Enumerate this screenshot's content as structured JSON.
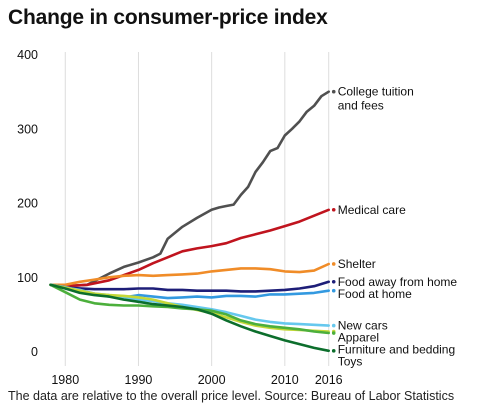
{
  "chart_data": {
    "type": "line",
    "title": "Change in consumer-price index",
    "note": "The data are relative to the overall price level. Source: Bureau of Labor Statistics",
    "xlabel": "",
    "ylabel": "",
    "xlim": [
      1976,
      2020
    ],
    "ylim": [
      0,
      400
    ],
    "x_ticks": [
      1980,
      1990,
      2000,
      2010,
      2016
    ],
    "y_ticks": [
      0,
      100,
      200,
      300,
      400
    ],
    "grid": "vertical lines at x ticks",
    "series": [
      {
        "name": "College tuition and fees",
        "label_lines": [
          "College tuition",
          "and fees"
        ],
        "color": "#505050",
        "x": [
          1978,
          1980,
          1983,
          1986,
          1988,
          1990,
          1992,
          1993,
          1994,
          1996,
          1998,
          2000,
          2001,
          2002,
          2003,
          2004,
          2005,
          2006,
          2007,
          2008,
          2009,
          2010,
          2011,
          2012,
          2013,
          2014,
          2015,
          2016
        ],
        "y": [
          100,
          98,
          100,
          115,
          124,
          130,
          137,
          142,
          162,
          178,
          190,
          201,
          204,
          206,
          208,
          221,
          232,
          252,
          265,
          280,
          284,
          301,
          310,
          320,
          333,
          341,
          354,
          360
        ]
      },
      {
        "name": "Medical care",
        "color": "#c0141e",
        "x": [
          1978,
          1980,
          1983,
          1986,
          1988,
          1990,
          1992,
          1994,
          1996,
          1998,
          2000,
          2002,
          2004,
          2006,
          2008,
          2010,
          2012,
          2014,
          2016
        ],
        "y": [
          100,
          98,
          100,
          106,
          113,
          120,
          129,
          137,
          145,
          149,
          152,
          156,
          163,
          168,
          173,
          179,
          185,
          193,
          201
        ]
      },
      {
        "name": "Shelter",
        "color": "#f08c28",
        "x": [
          1978,
          1980,
          1982,
          1984,
          1986,
          1988,
          1990,
          1992,
          1994,
          1996,
          1998,
          2000,
          2002,
          2004,
          2006,
          2008,
          2010,
          2012,
          2014,
          2016
        ],
        "y": [
          100,
          100,
          104,
          107,
          110,
          112,
          113,
          112,
          113,
          114,
          115,
          118,
          120,
          122,
          122,
          121,
          118,
          117,
          119,
          128
        ]
      },
      {
        "name": "Food away from home",
        "color": "#1e1e78",
        "x": [
          1978,
          1980,
          1984,
          1988,
          1990,
          1992,
          1994,
          1996,
          1998,
          2000,
          2002,
          2004,
          2006,
          2008,
          2010,
          2012,
          2014,
          2016
        ],
        "y": [
          100,
          96,
          94,
          94,
          95,
          95,
          93,
          93,
          92,
          92,
          92,
          91,
          91,
          92,
          93,
          95,
          98,
          104
        ]
      },
      {
        "name": "Food at home",
        "color": "#3399e0",
        "x": [
          1978,
          1980,
          1982,
          1984,
          1986,
          1988,
          1990,
          1992,
          1994,
          1996,
          1998,
          2000,
          2002,
          2004,
          2006,
          2008,
          2010,
          2012,
          2014,
          2016
        ],
        "y": [
          100,
          97,
          92,
          88,
          84,
          83,
          86,
          84,
          82,
          83,
          84,
          83,
          85,
          85,
          84,
          87,
          87,
          88,
          89,
          92
        ]
      },
      {
        "name": "New cars",
        "color": "#66c8ee",
        "x": [
          1978,
          1980,
          1982,
          1984,
          1986,
          1988,
          1990,
          1992,
          1994,
          1996,
          1998,
          2000,
          2002,
          2004,
          2006,
          2008,
          2010,
          2012,
          2014,
          2016
        ],
        "y": [
          100,
          96,
          93,
          88,
          86,
          82,
          80,
          78,
          75,
          73,
          70,
          67,
          63,
          58,
          53,
          50,
          48,
          47,
          46,
          45
        ]
      },
      {
        "name": "Apparel",
        "color": "#c4d838",
        "x": [
          1978,
          1980,
          1982,
          1984,
          1986,
          1988,
          1990,
          1992,
          1994,
          1996,
          1998,
          2000,
          2002,
          2004,
          2006,
          2008,
          2010,
          2012,
          2014,
          2016
        ],
        "y": [
          100,
          96,
          92,
          88,
          86,
          85,
          83,
          80,
          75,
          70,
          66,
          62,
          56,
          50,
          45,
          42,
          40,
          39,
          38,
          37
        ]
      },
      {
        "name": "Furniture and bedding",
        "color": "#4caf3c",
        "x": [
          1978,
          1980,
          1982,
          1984,
          1986,
          1988,
          1990,
          1992,
          1994,
          1996,
          1998,
          2000,
          2002,
          2004,
          2006,
          2008,
          2010,
          2012,
          2014,
          2016
        ],
        "y": [
          100,
          90,
          80,
          75,
          73,
          72,
          72,
          71,
          70,
          68,
          67,
          65,
          60,
          52,
          47,
          44,
          42,
          40,
          37,
          35
        ]
      },
      {
        "name": "Toys",
        "color": "#0c6e2c",
        "x": [
          1978,
          1980,
          1982,
          1984,
          1986,
          1988,
          1990,
          1992,
          1994,
          1996,
          1998,
          2000,
          2002,
          2004,
          2006,
          2008,
          2010,
          2012,
          2014,
          2016
        ],
        "y": [
          100,
          95,
          89,
          86,
          84,
          80,
          77,
          74,
          72,
          70,
          67,
          61,
          52,
          44,
          37,
          31,
          25,
          20,
          15,
          11
        ]
      }
    ]
  }
}
